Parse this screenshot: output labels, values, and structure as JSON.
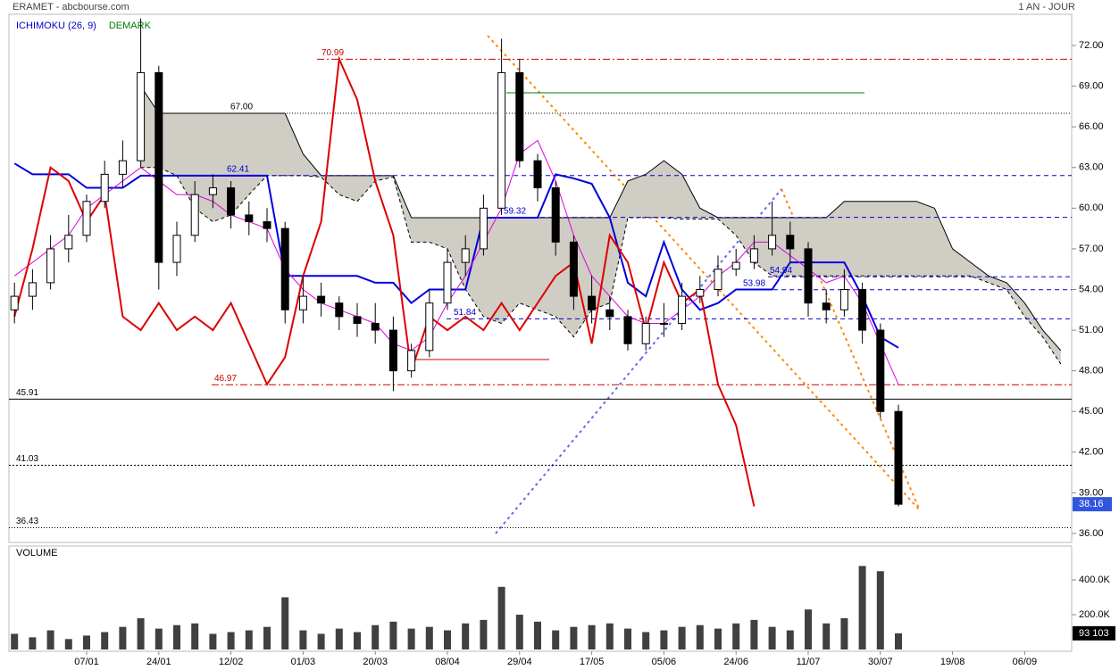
{
  "chart_data": [
    {
      "type": "candlestick",
      "title": "ERAMET - abcbourse.com",
      "subtitle": "1 AN - JOUR",
      "indicators": [
        {
          "text": "ICHIMOKU (26, 9)",
          "color": "#0000cc"
        },
        {
          "text": "DEMARK",
          "color": "#008000"
        }
      ],
      "categories": [
        null,
        null,
        null,
        null,
        "07/01",
        null,
        null,
        null,
        "24/01",
        null,
        null,
        null,
        "12/02",
        null,
        null,
        null,
        "01/03",
        null,
        null,
        null,
        "20/03",
        null,
        null,
        null,
        "08/04",
        null,
        null,
        null,
        "29/04",
        null,
        null,
        null,
        "17/05",
        null,
        null,
        null,
        "05/06",
        null,
        null,
        null,
        "24/06",
        null,
        null,
        null,
        "11/07",
        null,
        null,
        null,
        "30/07",
        null,
        null,
        null,
        "19/08",
        null,
        null,
        null,
        "06/09",
        null,
        null,
        null
      ],
      "ohlc": [
        [
          52.5,
          54.5,
          51.5,
          53.5
        ],
        [
          53.5,
          55.5,
          52.5,
          54.5
        ],
        [
          54.5,
          58,
          54,
          57
        ],
        [
          57,
          59.5,
          56,
          58
        ],
        [
          58,
          61,
          57.5,
          60.5
        ],
        [
          60.5,
          63.5,
          60,
          62.5
        ],
        [
          62.5,
          65,
          61.5,
          63.5
        ],
        [
          63.5,
          74,
          63,
          70
        ],
        [
          70,
          70.5,
          54,
          56
        ],
        [
          56,
          59,
          55,
          58
        ],
        [
          58,
          62,
          57.5,
          61
        ],
        [
          61,
          62.5,
          60,
          61.5
        ],
        [
          61.5,
          62,
          58.5,
          59.5
        ],
        [
          59.5,
          60.5,
          58,
          59
        ],
        [
          59,
          60,
          57.5,
          58.5
        ],
        [
          58.5,
          59,
          51.5,
          52.5
        ],
        [
          52.5,
          55,
          51.5,
          53.5
        ],
        [
          53.5,
          54.5,
          52,
          53
        ],
        [
          53,
          53.5,
          51,
          52
        ],
        [
          52,
          53,
          50.5,
          51.5
        ],
        [
          51.5,
          53,
          50,
          51
        ],
        [
          51,
          52,
          46.5,
          48
        ],
        [
          48,
          50,
          47.5,
          49.5
        ],
        [
          49.5,
          54,
          49,
          53
        ],
        [
          53,
          57,
          52.5,
          56
        ],
        [
          56,
          58,
          55,
          57
        ],
        [
          57,
          61,
          56.5,
          60
        ],
        [
          60,
          72.5,
          59.5,
          70
        ],
        [
          70,
          71,
          63,
          63.5
        ],
        [
          63.5,
          64,
          60.5,
          61.5
        ],
        [
          61.5,
          62,
          56.5,
          57.5
        ],
        [
          57.5,
          58,
          52.5,
          53.5
        ],
        [
          53.5,
          55,
          51.5,
          52.5
        ],
        [
          52.5,
          53.5,
          51,
          52
        ],
        [
          52,
          52.5,
          49.5,
          50
        ],
        [
          50,
          52,
          49.5,
          51.5
        ],
        [
          51.5,
          53,
          50.5,
          51.5
        ],
        [
          51.5,
          54.5,
          51,
          53.5
        ],
        [
          53.5,
          55,
          53,
          54
        ],
        [
          54,
          56.5,
          53.5,
          55.5
        ],
        [
          55.5,
          57,
          55,
          56
        ],
        [
          56,
          58,
          55.5,
          57
        ],
        [
          57,
          60.5,
          56.5,
          58
        ],
        [
          58,
          59,
          56,
          57
        ],
        [
          57,
          57.5,
          52,
          53
        ],
        [
          53,
          54,
          51.5,
          52.5
        ],
        [
          52.5,
          55.5,
          52,
          54
        ],
        [
          54,
          54.5,
          50,
          51
        ],
        [
          51,
          51.5,
          44.5,
          45
        ],
        [
          45,
          45.5,
          38,
          38.16
        ],
        null,
        null,
        null,
        null,
        null,
        null,
        null,
        null,
        null,
        null
      ],
      "up_color": "#ffffff",
      "down_color": "#000000",
      "lines": [
        {
          "color": "#0000dd",
          "width": 2,
          "values": [
            63.3,
            62.5,
            62.5,
            62.5,
            61.5,
            61.5,
            61.5,
            62.4,
            62.4,
            62.4,
            62.4,
            62.4,
            62.4,
            62.4,
            62.4,
            55,
            55,
            55,
            55,
            55,
            54.5,
            54.5,
            53,
            54,
            54,
            54,
            59.3,
            59.3,
            59.3,
            59.3,
            62.5,
            62.2,
            61.8,
            59.3,
            54.5,
            53.5,
            57.5,
            54,
            52.5,
            53,
            54,
            54,
            54,
            56,
            56,
            56,
            56,
            53.5,
            50.5,
            49.7,
            null,
            null,
            null,
            null,
            null,
            null,
            null,
            null,
            null,
            null
          ]
        },
        {
          "color": "#dd00dd",
          "width": 1,
          "values": [
            55,
            56,
            57,
            58,
            60,
            61,
            62,
            63,
            62,
            61,
            61,
            60.5,
            59.5,
            59,
            58.5,
            55.5,
            54,
            53,
            52.5,
            52,
            51.5,
            50,
            49.5,
            50.5,
            53,
            55,
            57.5,
            60,
            64,
            65,
            62,
            58,
            55,
            53.5,
            52,
            51.5,
            51.5,
            52.5,
            53.5,
            55,
            56,
            57.5,
            57.5,
            56.5,
            55.5,
            54.5,
            55,
            53,
            50,
            47,
            null,
            null,
            null,
            null,
            null,
            null,
            null,
            null,
            null,
            null
          ]
        },
        {
          "color": "#dd0000",
          "width": 2,
          "values": [
            52,
            57,
            63,
            62,
            59,
            61,
            52,
            51,
            53,
            51,
            52,
            51,
            53,
            50,
            47,
            49,
            55,
            59,
            71,
            68,
            62,
            58,
            48,
            52,
            51,
            52,
            51,
            53,
            51,
            53,
            55,
            56,
            50,
            58,
            56,
            51,
            56,
            53,
            54,
            47,
            44,
            38,
            null,
            null,
            null,
            null,
            null,
            null,
            null,
            null,
            null,
            null,
            null,
            null,
            null,
            null,
            null,
            null,
            null,
            null
          ]
        }
      ],
      "cloud": {
        "fill": "#cfcdc4",
        "upper": [
          null,
          null,
          null,
          null,
          null,
          null,
          null,
          69,
          67,
          67,
          67,
          67,
          67,
          67,
          67,
          67,
          64,
          62.4,
          62.4,
          62.4,
          62.4,
          62.4,
          59.3,
          59.3,
          59.3,
          59.3,
          59.3,
          59.3,
          59.3,
          59.3,
          59.3,
          59.3,
          59.3,
          59.3,
          62,
          62.5,
          63.5,
          62.5,
          60,
          59.3,
          59.3,
          59.3,
          59.3,
          59.3,
          59.3,
          59.3,
          60.5,
          60.5,
          60.5,
          60.5,
          60.5,
          60,
          57,
          56,
          55,
          54.5,
          53,
          51,
          49.5,
          null
        ],
        "lower": [
          null,
          null,
          null,
          null,
          null,
          null,
          null,
          63,
          63,
          62.4,
          60,
          59,
          59.5,
          61,
          62.4,
          62.4,
          62.4,
          62.3,
          61,
          60.5,
          62,
          62.3,
          57.5,
          57.5,
          57,
          54,
          52,
          51.5,
          53,
          52.5,
          52,
          50.5,
          52.5,
          53,
          59.3,
          59.3,
          59.3,
          59.2,
          59.2,
          59.2,
          58,
          56,
          55,
          55,
          55,
          55,
          55,
          55,
          55,
          55,
          55,
          55,
          55,
          55,
          54.5,
          54,
          52,
          50.5,
          48.5,
          null
        ]
      },
      "levels": [
        {
          "value": 70.99,
          "color": "#cc0000",
          "dash": "8 3 2 3"
        },
        {
          "value": 67,
          "label": "67.00",
          "color": "#000000",
          "dash": "1 2"
        },
        {
          "value": 62.41,
          "color": "#0000cc",
          "dash": "5 4"
        },
        {
          "value": 59.32,
          "color": "#0000cc",
          "dash": "5 4"
        },
        {
          "value": 54.94,
          "color": "#0000cc",
          "dash": "5 4"
        },
        {
          "value": 53.98,
          "color": "#0000cc",
          "dash": "5 4"
        },
        {
          "value": 51.84,
          "color": "#0000cc",
          "dash": "5 4"
        },
        {
          "value": 46.97,
          "color": "#cc0000",
          "dash": "8 3 2 3"
        },
        {
          "value": 45.91,
          "color": "#000000",
          "dash": "none"
        },
        {
          "value": 41.03,
          "color": "#000000",
          "dash": "2 2"
        },
        {
          "value": 36.43,
          "color": "#000000",
          "dash": "1 2"
        }
      ],
      "last_color": "#3355dd",
      "ylim": [
        35.34,
        74.7
      ],
      "yticks": [
        {
          "value": 36,
          "label": "36.00"
        },
        {
          "value": 39,
          "label": "39.00"
        },
        {
          "value": 42,
          "label": "42.00"
        },
        {
          "value": 45,
          "label": "45.00"
        },
        {
          "value": 48,
          "label": "48.00"
        },
        {
          "value": 51,
          "label": "51.00"
        },
        {
          "value": 54,
          "label": "54.00"
        },
        {
          "value": 57,
          "label": "57.00"
        },
        {
          "value": 60,
          "label": "60.00"
        },
        {
          "value": 63,
          "label": "63.00"
        },
        {
          "value": 66,
          "label": "66.00"
        },
        {
          "value": 69,
          "label": "69.00"
        },
        {
          "value": 72,
          "label": "72.00"
        }
      ]
    },
    {
      "type": "bar",
      "title": "VOLUME",
      "color": "#404040",
      "values": [
        90000,
        70000,
        110000,
        60000,
        80000,
        100000,
        130000,
        180000,
        120000,
        140000,
        150000,
        90000,
        100000,
        110000,
        130000,
        300000,
        110000,
        90000,
        120000,
        100000,
        140000,
        160000,
        120000,
        130000,
        110000,
        150000,
        170000,
        360000,
        200000,
        160000,
        110000,
        130000,
        140000,
        150000,
        120000,
        100000,
        110000,
        130000,
        140000,
        120000,
        150000,
        170000,
        130000,
        110000,
        230000,
        150000,
        180000,
        480000,
        450000,
        93103,
        null,
        null,
        null,
        null,
        null,
        null,
        null,
        null,
        null,
        null
      ],
      "value_labels": [
        null,
        null,
        null,
        null,
        null,
        null,
        null,
        null,
        null,
        null,
        null,
        null,
        null,
        null,
        null,
        null,
        null,
        null,
        null,
        null,
        null,
        null,
        null,
        null,
        null,
        null,
        null,
        null,
        null,
        null,
        null,
        null,
        null,
        null,
        null,
        null,
        null,
        null,
        null,
        null,
        null,
        null,
        null,
        null,
        null,
        null,
        null,
        null,
        null,
        "93 103",
        null,
        null,
        null,
        null,
        null,
        null,
        null,
        null,
        null,
        null
      ],
      "ylim": [
        0,
        595000
      ],
      "yticks": [
        {
          "value": 200000,
          "label": "200.0K"
        },
        {
          "value": 400000,
          "label": "400.0K"
        }
      ]
    }
  ]
}
